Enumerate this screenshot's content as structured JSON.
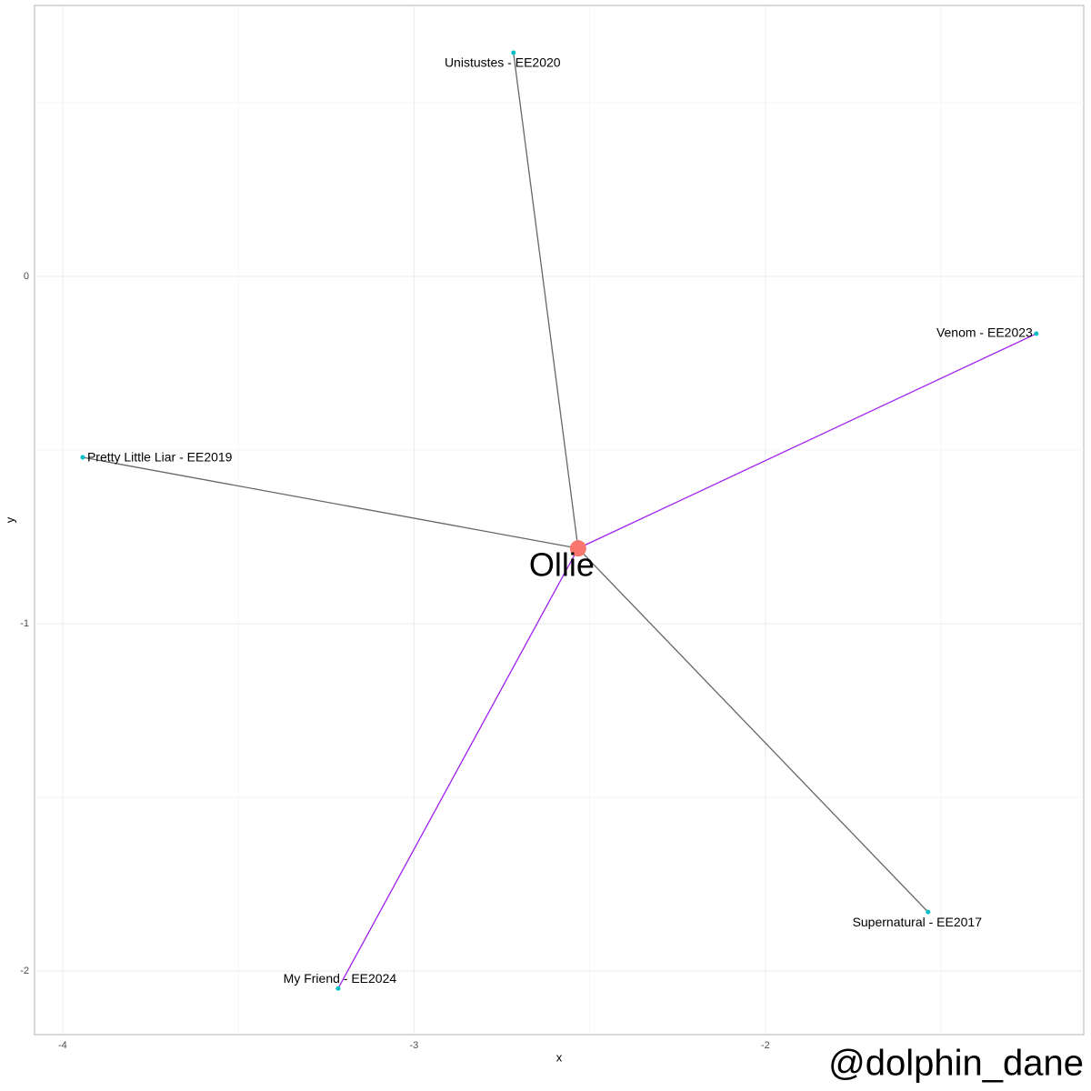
{
  "chart_data": {
    "type": "network",
    "x_label": "x",
    "y_label": "y",
    "caption": "@dolphin_dane",
    "xlim": [
      -4.08,
      -1.094
    ],
    "ylim": [
      -2.183,
      0.78
    ],
    "xticks": [
      -4,
      -3,
      -2
    ],
    "yticks": [
      0,
      -1,
      -2
    ],
    "xminor": [
      -3.5,
      -2.5,
      -1.5
    ],
    "yminor": [
      0.5,
      -0.5,
      -1.5
    ],
    "grid": true,
    "center": {
      "label": "Ollie",
      "x": -2.533,
      "y": -0.783,
      "color": "#f8766d"
    },
    "points": {
      "labels": [
        "Unistustes - EE2020",
        "Venom - EE2023",
        "Pretty Little Liar - EE2019",
        "Supernatural - EE2017",
        "My Friend - EE2024"
      ],
      "x": [
        -2.717,
        -1.229,
        -3.943,
        -1.537,
        -3.216
      ],
      "y": [
        0.644,
        -0.165,
        -0.521,
        -1.83,
        -2.05
      ],
      "color": "#00bfc4",
      "edge_colors": [
        "#666666",
        "#a020f0",
        "#666666",
        "#666666",
        "#a020f0"
      ]
    }
  }
}
